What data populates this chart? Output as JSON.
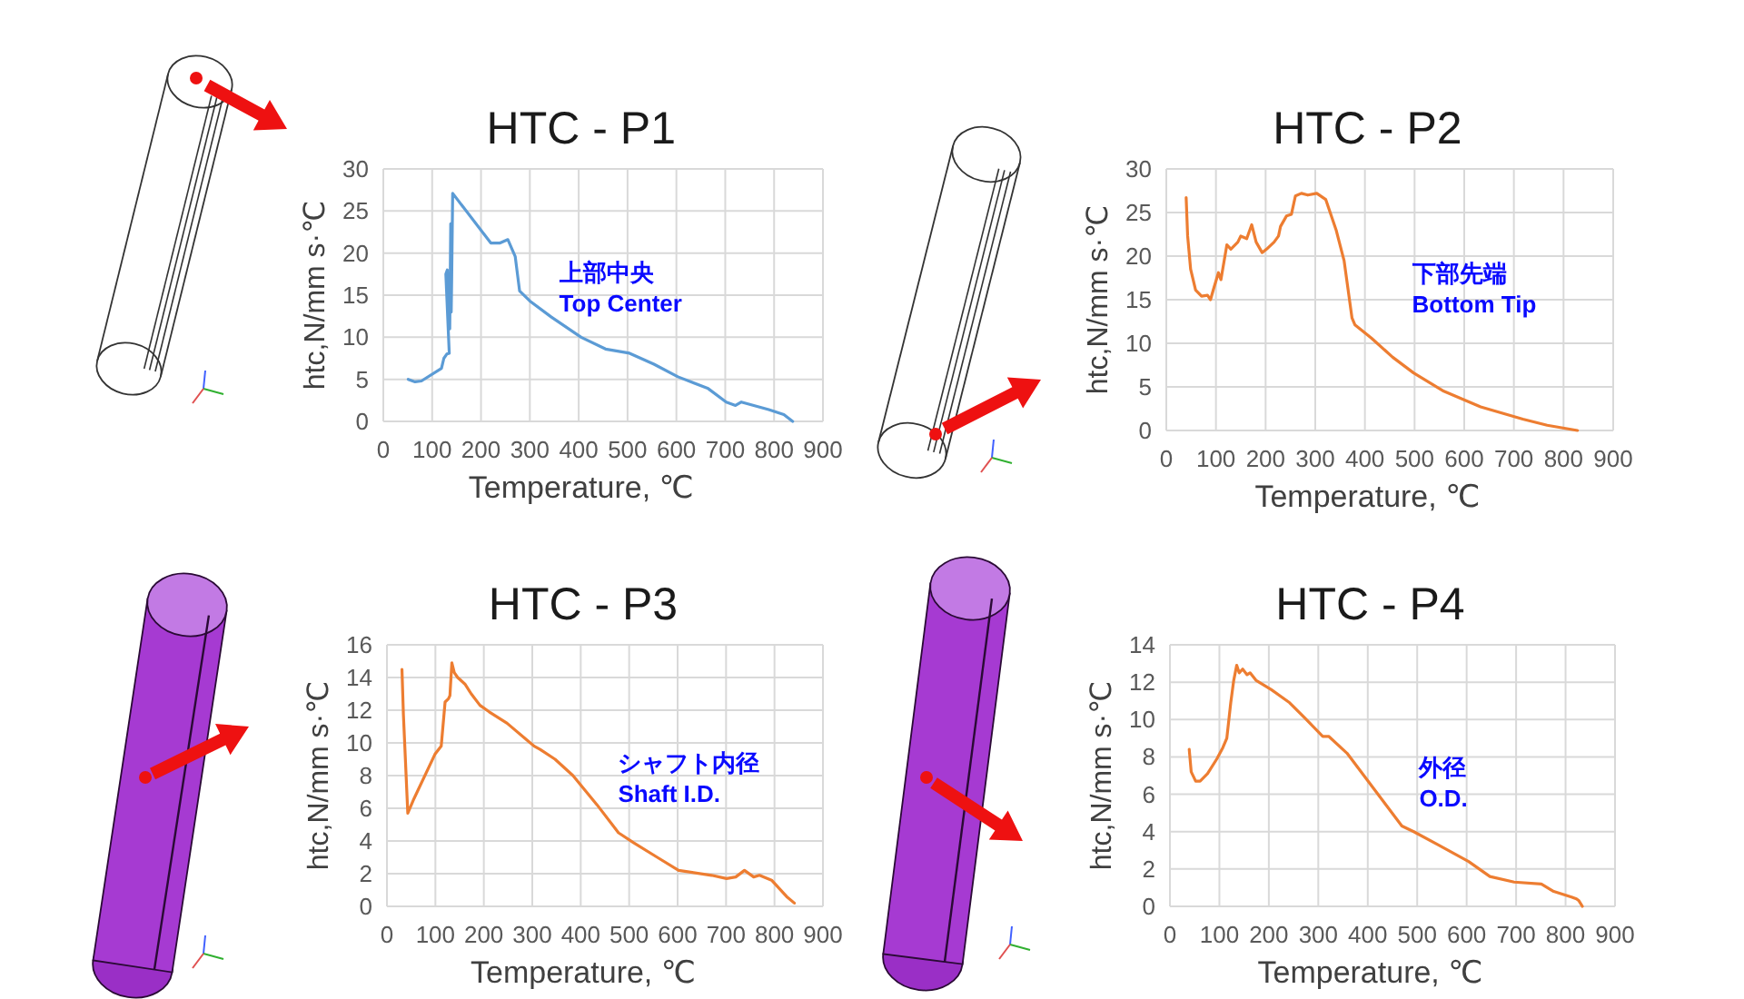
{
  "chart_data": [
    {
      "type": "line",
      "title": "HTC - P1",
      "xlabel": "Temperature, ℃",
      "ylabel": "htc,N/mm s·℃",
      "annotations": [
        "上部中央",
        "Top Center"
      ],
      "xlim": [
        0,
        900
      ],
      "xticks": [
        0,
        100,
        200,
        300,
        400,
        500,
        600,
        700,
        800,
        900
      ],
      "ylim": [
        0,
        30
      ],
      "yticks": [
        0,
        5,
        10,
        15,
        20,
        25,
        30
      ],
      "grid": true,
      "series": [
        {
          "color": "#5b9bd5",
          "x": [
            51,
            65,
            78,
            119,
            124,
            130,
            135,
            128,
            131,
            133,
            134,
            136,
            138,
            139,
            140,
            142,
            220,
            239,
            255,
            270,
            279,
            300,
            344,
            405,
            455,
            504,
            554,
            603,
            665,
            702,
            721,
            733,
            789,
            820,
            838
          ],
          "values": [
            5.0,
            4.7,
            4.8,
            6.3,
            7.5,
            8.0,
            8.1,
            17.5,
            18.0,
            12.0,
            17.5,
            11.0,
            23.5,
            13.0,
            17.0,
            27.1,
            21.2,
            21.2,
            21.6,
            19.6,
            15.5,
            14.3,
            12.4,
            10.0,
            8.6,
            8.1,
            6.8,
            5.3,
            3.9,
            2.3,
            1.9,
            2.3,
            1.4,
            0.8,
            0
          ]
        }
      ]
    },
    {
      "type": "line",
      "title": "HTC - P2",
      "xlabel": "Temperature, ℃",
      "ylabel": "htc,N/mm s·℃",
      "annotations": [
        "下部先端",
        "Bottom Tip"
      ],
      "xlim": [
        0,
        900
      ],
      "xticks": [
        0,
        100,
        200,
        300,
        400,
        500,
        600,
        700,
        800,
        900
      ],
      "ylim": [
        0,
        30
      ],
      "yticks": [
        0,
        5,
        10,
        15,
        20,
        25,
        30
      ],
      "grid": true,
      "series": [
        {
          "color": "#ed7d31",
          "x": [
            40,
            43,
            49,
            59,
            71,
            83,
            89,
            95,
            105,
            110,
            122,
            130,
            144,
            150,
            162,
            172,
            181,
            193,
            202,
            217,
            226,
            230,
            242,
            252,
            260,
            272,
            285,
            303,
            321,
            342,
            358,
            374,
            380,
            413,
            456,
            498,
            559,
            633,
            718,
            767,
            828
          ],
          "values": [
            26.7,
            22.3,
            18.5,
            16.1,
            15.4,
            15.5,
            15.0,
            16.2,
            18.1,
            17.3,
            21.3,
            20.8,
            21.6,
            22.3,
            22.0,
            23.6,
            21.6,
            20.4,
            20.8,
            21.6,
            22.3,
            23.4,
            24.6,
            24.8,
            26.9,
            27.2,
            27.0,
            27.2,
            26.5,
            23.0,
            19.5,
            12.9,
            12.1,
            10.6,
            8.4,
            6.6,
            4.5,
            2.7,
            1.3,
            0.6,
            0
          ]
        }
      ]
    },
    {
      "type": "line",
      "title": "HTC - P3",
      "xlabel": "Temperature, ℃",
      "ylabel": "htc,N/mm s·℃",
      "annotations": [
        "シャフト内径",
        "Shaft I.D."
      ],
      "xlim": [
        0,
        900
      ],
      "xticks": [
        0,
        100,
        200,
        300,
        400,
        500,
        600,
        700,
        800,
        900
      ],
      "ylim": [
        0,
        16
      ],
      "yticks": [
        0,
        2,
        4,
        6,
        8,
        10,
        12,
        14,
        16
      ],
      "grid": true,
      "series": [
        {
          "color": "#ed7d31",
          "x": [
            31,
            34,
            43,
            56,
            99,
            112,
            120,
            127,
            130,
            134,
            139,
            146,
            161,
            174,
            192,
            211,
            248,
            292,
            304,
            316,
            347,
            384,
            434,
            478,
            509,
            558,
            602,
            670,
            701,
            720,
            738,
            757,
            769,
            794,
            825,
            841
          ],
          "values": [
            14.5,
            11.7,
            5.7,
            6.6,
            9.3,
            9.8,
            12.5,
            12.7,
            12.9,
            14.9,
            14.3,
            14.0,
            13.6,
            13.0,
            12.3,
            11.9,
            11.2,
            10.1,
            9.8,
            9.6,
            9.0,
            8.0,
            6.2,
            4.5,
            3.9,
            3.0,
            2.2,
            1.9,
            1.7,
            1.8,
            2.2,
            1.8,
            1.9,
            1.6,
            0.6,
            0.2
          ]
        }
      ]
    },
    {
      "type": "line",
      "title": "HTC - P4",
      "xlabel": "Temperature, ℃",
      "ylabel": "htc,N/mm s·℃",
      "annotations": [
        "外径",
        "O.D."
      ],
      "xlim": [
        0,
        900
      ],
      "xticks": [
        0,
        100,
        200,
        300,
        400,
        500,
        600,
        700,
        800,
        900
      ],
      "ylim": [
        0,
        14
      ],
      "yticks": [
        0,
        2,
        4,
        6,
        8,
        10,
        12,
        14
      ],
      "grid": true,
      "series": [
        {
          "color": "#ed7d31",
          "x": [
            39,
            43,
            52,
            61,
            76,
            95,
            107,
            115,
            123,
            129,
            135,
            140,
            147,
            156,
            162,
            174,
            205,
            242,
            272,
            309,
            321,
            358,
            395,
            432,
            469,
            493,
            542,
            604,
            647,
            696,
            751,
            776,
            812,
            822,
            827,
            834
          ],
          "values": [
            8.4,
            7.2,
            6.7,
            6.7,
            7.1,
            7.9,
            8.5,
            9.0,
            10.9,
            12.1,
            12.9,
            12.5,
            12.7,
            12.4,
            12.5,
            12.1,
            11.6,
            10.9,
            10.1,
            9.1,
            9.1,
            8.2,
            6.9,
            5.6,
            4.3,
            4.0,
            3.3,
            2.4,
            1.6,
            1.3,
            1.2,
            0.8,
            0.5,
            0.4,
            0.3,
            0
          ]
        }
      ]
    }
  ]
}
